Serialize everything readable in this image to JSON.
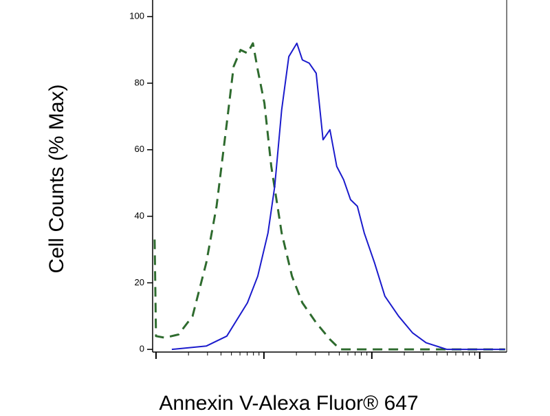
{
  "chart_data": {
    "type": "line",
    "y_label": "Cell Counts (% Max)",
    "x_label": "Annexin V-Alexa Fluor® 647",
    "xscale": "log",
    "xlim": [
      0.93,
      1778
    ],
    "xticks": [
      1,
      10,
      100,
      1000
    ],
    "ylim": [
      -0.8,
      105
    ],
    "yticks": [
      0,
      20,
      40,
      60,
      80,
      100
    ],
    "series": [
      {
        "color": "#2e6b2e",
        "dashed": true,
        "x": [
          0.97,
          1,
          1.21,
          1.62,
          2.18,
          2.92,
          3.64,
          4.53,
          5.24,
          6.07,
          7.03,
          7.91,
          8.77,
          10.1,
          11.7,
          14.6,
          18.2,
          22.7,
          30.5,
          40.9,
          50.9,
          1721
        ],
        "values": [
          33,
          4,
          3.5,
          4.5,
          10,
          26,
          43,
          68,
          85,
          90,
          89,
          92,
          84,
          74,
          55,
          35,
          22,
          14,
          8,
          3,
          0,
          0
        ]
      },
      {
        "color": "#1a1acc",
        "dashed": false,
        "x": [
          1.4,
          2.92,
          4.53,
          7.03,
          8.77,
          10.9,
          12.6,
          14.6,
          17.0,
          20.2,
          22.7,
          26.3,
          30.5,
          35.3,
          40.9,
          47.3,
          54.8,
          63.5,
          73.5,
          85.1,
          106,
          132,
          177,
          238,
          318,
          495,
          1721
        ],
        "values": [
          0,
          1,
          4,
          14,
          22,
          35,
          49,
          72,
          88,
          92,
          87,
          86,
          83,
          63,
          66,
          55,
          51,
          45,
          43,
          35,
          26,
          16,
          10,
          5,
          2,
          0,
          0
        ]
      }
    ]
  }
}
